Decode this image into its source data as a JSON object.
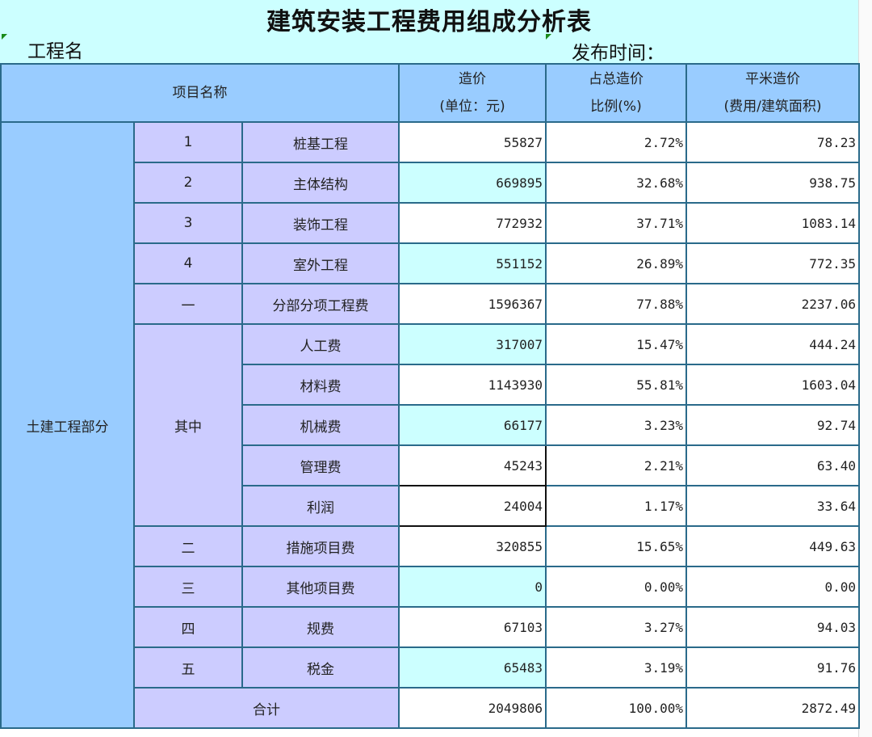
{
  "title": "建筑安装工程费用组成分析表",
  "project_label": "工程名",
  "publish_label": "发布时间：",
  "header": {
    "item_name": "项目名称",
    "cost_line1": "造价",
    "cost_line2": "(单位：元)",
    "ratio_line1": "占总造价",
    "ratio_line2": "比例(%)",
    "sqm_line1": "平米造价",
    "sqm_line2": "(费用/建筑面积)"
  },
  "section_label": "土建工程部分",
  "sub_group_label": "其中",
  "rows": [
    {
      "no": "1",
      "name": "桩基工程",
      "cost": "55827",
      "ratio": "2.72%",
      "sqm": "78.23"
    },
    {
      "no": "2",
      "name": "主体结构",
      "cost": "669895",
      "ratio": "32.68%",
      "sqm": "938.75"
    },
    {
      "no": "3",
      "name": "装饰工程",
      "cost": "772932",
      "ratio": "37.71%",
      "sqm": "1083.14"
    },
    {
      "no": "4",
      "name": "室外工程",
      "cost": "551152",
      "ratio": "26.89%",
      "sqm": "772.35"
    },
    {
      "no": "一",
      "name": "分部分项工程费",
      "cost": "1596367",
      "ratio": "77.88%",
      "sqm": "2237.06"
    },
    {
      "no": "",
      "name": "人工费",
      "cost": "317007",
      "ratio": "15.47%",
      "sqm": "444.24"
    },
    {
      "no": "",
      "name": "材料费",
      "cost": "1143930",
      "ratio": "55.81%",
      "sqm": "1603.04"
    },
    {
      "no": "",
      "name": "机械费",
      "cost": "66177",
      "ratio": "3.23%",
      "sqm": "92.74"
    },
    {
      "no": "",
      "name": "管理费",
      "cost": "45243",
      "ratio": "2.21%",
      "sqm": "63.40"
    },
    {
      "no": "",
      "name": "利润",
      "cost": "24004",
      "ratio": "1.17%",
      "sqm": "33.64"
    },
    {
      "no": "二",
      "name": "措施项目费",
      "cost": "320855",
      "ratio": "15.65%",
      "sqm": "449.63"
    },
    {
      "no": "三",
      "name": "其他项目费",
      "cost": "0",
      "ratio": "0.00%",
      "sqm": "0.00"
    },
    {
      "no": "四",
      "name": "规费",
      "cost": "67103",
      "ratio": "3.27%",
      "sqm": "94.03"
    },
    {
      "no": "五",
      "name": "税金",
      "cost": "65483",
      "ratio": "3.19%",
      "sqm": "91.76"
    }
  ],
  "total": {
    "label": "合计",
    "cost": "2049806",
    "ratio": "100.00%",
    "sqm": "2872.49"
  },
  "colors": {
    "title_bg": "#ccffff",
    "header_bg": "#99ccff",
    "label_bg": "#ccccff",
    "alt_cell": "#ccffff",
    "border": "#2a6a8a"
  }
}
